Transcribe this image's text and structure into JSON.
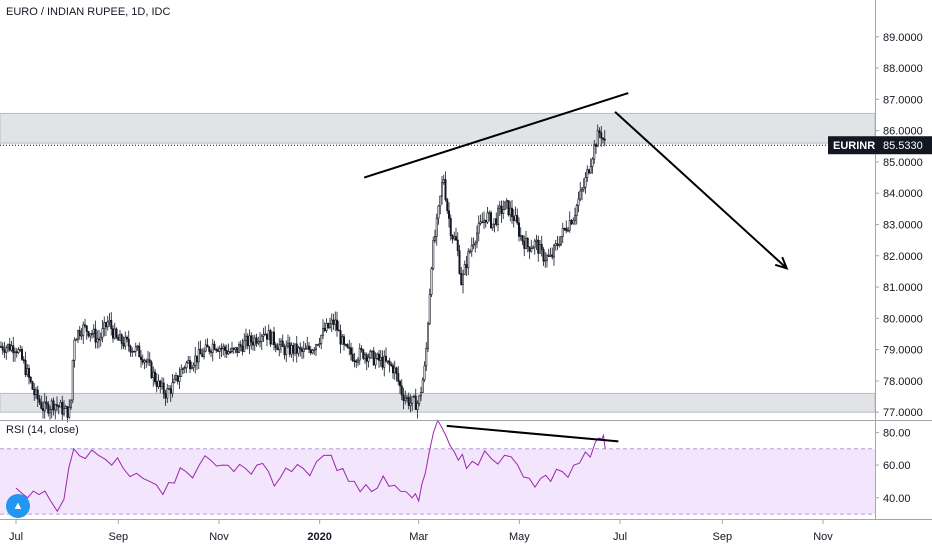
{
  "chart_data": [
    {
      "type": "candlestick",
      "title": "EURO / INDIAN RUPEE, 1D, IDC",
      "symbol_tag": "EURINR",
      "last_price": "85.5330",
      "price_ticks": [
        "89.0000",
        "88.0000",
        "87.0000",
        "86.0000",
        "85.0000",
        "84.0000",
        "83.0000",
        "82.0000",
        "81.0000",
        "80.0000",
        "79.0000",
        "78.0000",
        "77.0000"
      ],
      "ylim": [
        76.75,
        89.6
      ],
      "x_ticks": [
        "Jul",
        "Sep",
        "Nov",
        "2020",
        "Mar",
        "May",
        "Jul",
        "Sep",
        "Nov"
      ],
      "price_path": [
        [
          "2019-07-01",
          79.1
        ],
        [
          "2019-07-06",
          78.5
        ],
        [
          "2019-07-12",
          77.6
        ],
        [
          "2019-07-18",
          77.1
        ],
        [
          "2019-07-24",
          77.3
        ],
        [
          "2019-07-30",
          77.05
        ],
        [
          "2019-08-03",
          77.0
        ],
        [
          "2019-08-05",
          79.4
        ],
        [
          "2019-08-10",
          79.7
        ],
        [
          "2019-08-15",
          79.6
        ],
        [
          "2019-08-20",
          79.3
        ],
        [
          "2019-08-26",
          79.9
        ],
        [
          "2019-08-31",
          79.3
        ],
        [
          "2019-09-06",
          79.2
        ],
        [
          "2019-09-11",
          79.0
        ],
        [
          "2019-09-16",
          78.8
        ],
        [
          "2019-09-21",
          78.3
        ],
        [
          "2019-09-26",
          77.8
        ],
        [
          "2019-09-30",
          77.6
        ],
        [
          "2019-10-05",
          77.9
        ],
        [
          "2019-10-11",
          78.5
        ],
        [
          "2019-10-17",
          78.7
        ],
        [
          "2019-10-23",
          78.9
        ],
        [
          "2019-10-29",
          79.2
        ],
        [
          "2019-11-04",
          79.0
        ],
        [
          "2019-11-10",
          78.9
        ],
        [
          "2019-11-16",
          79.2
        ],
        [
          "2019-11-22",
          79.3
        ],
        [
          "2019-11-28",
          79.6
        ],
        [
          "2019-12-04",
          79.3
        ],
        [
          "2019-12-10",
          79.0
        ],
        [
          "2019-12-16",
          79.0
        ],
        [
          "2019-12-22",
          78.9
        ],
        [
          "2019-12-28",
          79.1
        ],
        [
          "2020-01-04",
          79.6
        ],
        [
          "2020-01-10",
          79.9
        ],
        [
          "2020-01-16",
          79.0
        ],
        [
          "2020-01-22",
          78.8
        ],
        [
          "2020-01-28",
          78.9
        ],
        [
          "2020-02-03",
          78.7
        ],
        [
          "2020-02-09",
          78.6
        ],
        [
          "2020-02-15",
          78.4
        ],
        [
          "2020-02-20",
          77.6
        ],
        [
          "2020-02-25",
          77.3
        ],
        [
          "2020-03-01",
          77.3
        ],
        [
          "2020-03-05",
          78.5
        ],
        [
          "2020-03-09",
          82.0
        ],
        [
          "2020-03-12",
          83.0
        ],
        [
          "2020-03-16",
          84.6
        ],
        [
          "2020-03-18",
          83.6
        ],
        [
          "2020-03-21",
          82.7
        ],
        [
          "2020-03-24",
          82.4
        ],
        [
          "2020-03-27",
          81.1
        ],
        [
          "2020-03-30",
          81.8
        ],
        [
          "2020-04-03",
          82.5
        ],
        [
          "2020-04-07",
          82.9
        ],
        [
          "2020-04-11",
          83.3
        ],
        [
          "2020-04-15",
          83.0
        ],
        [
          "2020-04-19",
          83.4
        ],
        [
          "2020-04-23",
          83.6
        ],
        [
          "2020-04-28",
          83.2
        ],
        [
          "2020-05-02",
          82.6
        ],
        [
          "2020-05-06",
          82.3
        ],
        [
          "2020-05-11",
          82.4
        ],
        [
          "2020-05-15",
          82.0
        ],
        [
          "2020-05-20",
          81.9
        ],
        [
          "2020-05-25",
          82.5
        ],
        [
          "2020-05-30",
          83.0
        ],
        [
          "2020-06-03",
          83.3
        ],
        [
          "2020-06-06",
          83.8
        ],
        [
          "2020-06-09",
          84.2
        ],
        [
          "2020-06-13",
          85.0
        ],
        [
          "2020-06-16",
          85.6
        ],
        [
          "2020-06-19",
          86.0
        ],
        [
          "2020-06-22",
          85.53
        ]
      ],
      "zones": [
        [
          85.6,
          86.55
        ],
        [
          77.0,
          77.6
        ]
      ],
      "current_price": 85.533,
      "trendline": [
        [
          "2020-01-28",
          84.5
        ],
        [
          "2020-07-06",
          87.2
        ]
      ],
      "arrow": [
        [
          "2020-06-28",
          86.6
        ],
        [
          "2020-10-10",
          81.6
        ]
      ]
    },
    {
      "type": "line",
      "title": "RSI (14, close)",
      "ticks": [
        "80.00",
        "60.00",
        "40.00"
      ],
      "ylim": [
        27,
        87
      ],
      "band": [
        70,
        30
      ],
      "rsi_path": [
        [
          "2019-07-01",
          46
        ],
        [
          "2019-07-08",
          40
        ],
        [
          "2019-07-15",
          42
        ],
        [
          "2019-07-22",
          38
        ],
        [
          "2019-07-30",
          39
        ],
        [
          "2019-08-05",
          70
        ],
        [
          "2019-08-12",
          64
        ],
        [
          "2019-08-20",
          66
        ],
        [
          "2019-08-28",
          60
        ],
        [
          "2019-09-04",
          58
        ],
        [
          "2019-09-12",
          55
        ],
        [
          "2019-09-20",
          50
        ],
        [
          "2019-09-28",
          42
        ],
        [
          "2019-10-05",
          49
        ],
        [
          "2019-10-12",
          56
        ],
        [
          "2019-10-20",
          60
        ],
        [
          "2019-10-27",
          63
        ],
        [
          "2019-11-03",
          60
        ],
        [
          "2019-11-10",
          56
        ],
        [
          "2019-11-17",
          58
        ],
        [
          "2019-11-24",
          60
        ],
        [
          "2019-12-01",
          56
        ],
        [
          "2019-12-08",
          52
        ],
        [
          "2019-12-15",
          56
        ],
        [
          "2019-12-22",
          58
        ],
        [
          "2019-12-30",
          62
        ],
        [
          "2020-01-08",
          66
        ],
        [
          "2020-01-15",
          58
        ],
        [
          "2020-01-22",
          50
        ],
        [
          "2020-01-29",
          48
        ],
        [
          "2020-02-05",
          46
        ],
        [
          "2020-02-12",
          47
        ],
        [
          "2020-02-19",
          44
        ],
        [
          "2020-02-26",
          40
        ],
        [
          "2020-03-01",
          38
        ],
        [
          "2020-03-05",
          55
        ],
        [
          "2020-03-10",
          80
        ],
        [
          "2020-03-15",
          83
        ],
        [
          "2020-03-20",
          72
        ],
        [
          "2020-03-25",
          63
        ],
        [
          "2020-03-30",
          58
        ],
        [
          "2020-04-06",
          60
        ],
        [
          "2020-04-14",
          64
        ],
        [
          "2020-04-22",
          66
        ],
        [
          "2020-04-30",
          60
        ],
        [
          "2020-05-07",
          52
        ],
        [
          "2020-05-14",
          52
        ],
        [
          "2020-05-20",
          50
        ],
        [
          "2020-05-27",
          56
        ],
        [
          "2020-06-03",
          60
        ],
        [
          "2020-06-10",
          68
        ],
        [
          "2020-06-16",
          74
        ],
        [
          "2020-06-20",
          76
        ],
        [
          "2020-06-22",
          70
        ]
      ],
      "divergence_line": [
        [
          "2020-03-18",
          84
        ],
        [
          "2020-06-30",
          74.5
        ]
      ]
    }
  ]
}
